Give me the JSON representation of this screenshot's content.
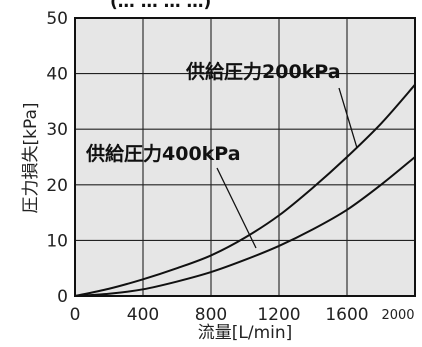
{
  "header_fragment": "(… … … …)",
  "chart_data": {
    "type": "line",
    "xlabel": "流量[L/min]",
    "ylabel": "圧力損失[kPa]",
    "xlim": [
      0,
      2000
    ],
    "ylim": [
      0,
      50
    ],
    "x_ticks": [
      "0",
      "400",
      "800",
      "1200",
      "1600",
      "2000"
    ],
    "y_ticks": [
      "0",
      "10",
      "20",
      "30",
      "40",
      "50"
    ],
    "grid": true,
    "series": [
      {
        "name": "供給圧力200kPa",
        "x": [
          0,
          200,
          400,
          600,
          800,
          1000,
          1200,
          1400,
          1600,
          1800,
          2000
        ],
        "y": [
          0,
          1.3,
          3.0,
          5.0,
          7.3,
          10.5,
          14.5,
          19.5,
          25.0,
          31.0,
          38.0
        ]
      },
      {
        "name": "供給圧力400kPa",
        "x": [
          0,
          200,
          400,
          600,
          800,
          1000,
          1200,
          1400,
          1600,
          1800,
          2000
        ],
        "y": [
          0,
          0.4,
          1.2,
          2.6,
          4.3,
          6.5,
          9.0,
          12.0,
          15.5,
          20.0,
          25.0
        ]
      }
    ]
  }
}
